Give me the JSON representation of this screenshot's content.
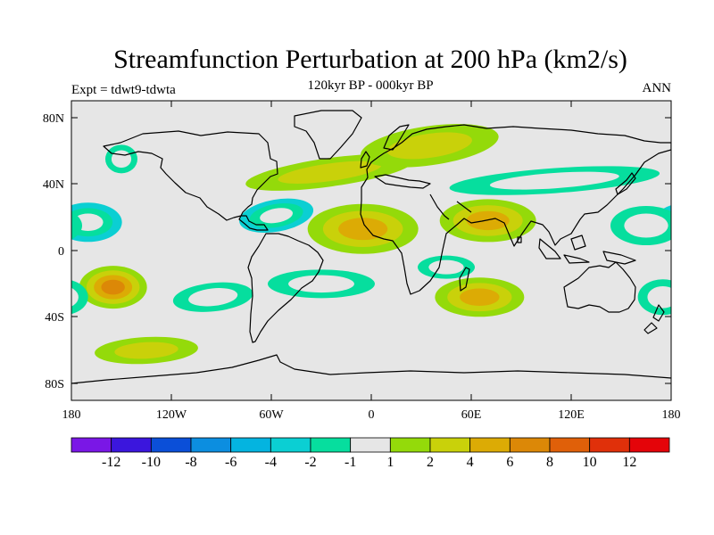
{
  "header": {
    "title": "Streamfunction Perturbation at 200 hPa (km2/s)",
    "subtitle": "120kyr BP - 000kyr BP",
    "left_label": "Expt = tdwt9-tdwta",
    "right_label": "ANN"
  },
  "axes": {
    "lat_labels": [
      "80N",
      "40N",
      "0",
      "40S",
      "80S"
    ],
    "lon_labels": [
      "180",
      "120W",
      "60W",
      "0",
      "60E",
      "120E",
      "180"
    ]
  },
  "colorbar": {
    "colors": [
      "#7a17e6",
      "#3b16dd",
      "#0b4fd8",
      "#0c8ee0",
      "#04b4e0",
      "#0bcfd3",
      "#06de9e",
      "#e6e6e6",
      "#94da0a",
      "#c9d10a",
      "#dcab05",
      "#dc8807",
      "#e06009",
      "#e0300a",
      "#e40409"
    ],
    "labels": [
      "-12",
      "-10",
      "-8",
      "-6",
      "-4",
      "-2",
      "-1",
      "1",
      "2",
      "4",
      "6",
      "8",
      "10",
      "12"
    ]
  },
  "chart_data": {
    "type": "contour-map",
    "variable": "Streamfunction Perturbation at 200 hPa",
    "units": "km2/s",
    "levels": [
      -12,
      -10,
      -8,
      -6,
      -4,
      -2,
      -1,
      1,
      2,
      4,
      6,
      8,
      10,
      12
    ],
    "lon_range": [
      -180,
      180
    ],
    "lat_range": [
      -90,
      90
    ],
    "anomalies": [
      {
        "name": "north-atlantic-positive",
        "lon": -25,
        "lat": 47,
        "level": 2
      },
      {
        "name": "eurasia-positive",
        "lon": 35,
        "lat": 63,
        "level": 2
      },
      {
        "name": "west-africa-positive",
        "lon": -5,
        "lat": 13,
        "level": 4
      },
      {
        "name": "south-asia-positive",
        "lon": 70,
        "lat": 18,
        "level": 4
      },
      {
        "name": "south-indian-ocean-positive",
        "lon": 65,
        "lat": -28,
        "level": 4
      },
      {
        "name": "south-pacific-positive",
        "lon": -155,
        "lat": -22,
        "level": 6
      },
      {
        "name": "southern-ocean-positive",
        "lon": -135,
        "lat": -60,
        "level": 2
      },
      {
        "name": "east-asia-negative",
        "lon": 110,
        "lat": 42,
        "level": -2
      },
      {
        "name": "central-pacific-negative",
        "lon": -170,
        "lat": 17,
        "level": -4
      },
      {
        "name": "west-pacific-negative",
        "lon": 165,
        "lat": 15,
        "level": -2
      },
      {
        "name": "caribbean-negative",
        "lon": -57,
        "lat": 21,
        "level": -4
      },
      {
        "name": "south-atlantic-negative",
        "lon": -30,
        "lat": -20,
        "level": -2
      },
      {
        "name": "southeast-pacific-negative",
        "lon": -95,
        "lat": -28,
        "level": -2
      },
      {
        "name": "east-africa-negative",
        "lon": 45,
        "lat": -10,
        "level": -2
      },
      {
        "name": "alaska-negative",
        "lon": -150,
        "lat": 55,
        "level": -2
      },
      {
        "name": "tasman-negative",
        "lon": 175,
        "lat": -28,
        "level": -2
      }
    ]
  }
}
